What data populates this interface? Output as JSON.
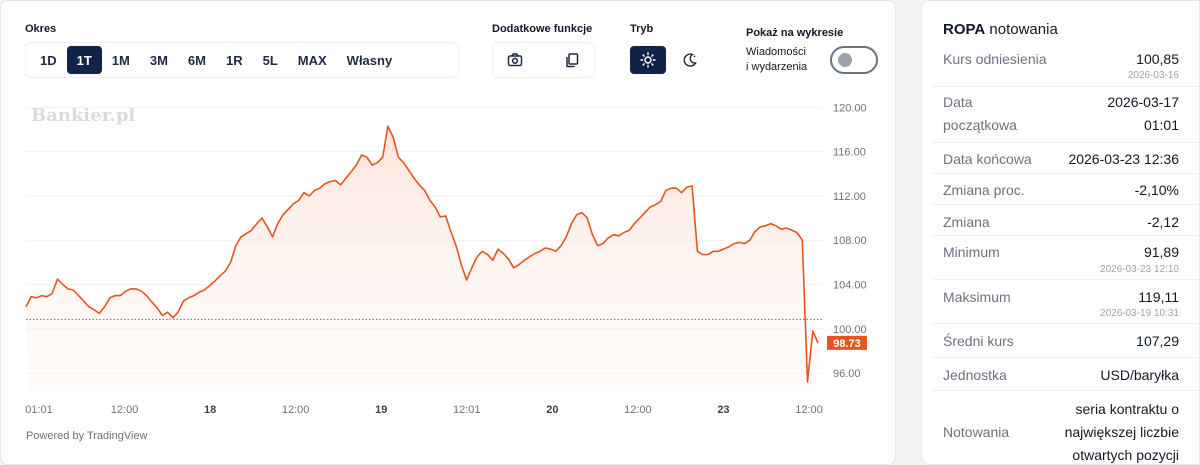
{
  "controls": {
    "period_label": "Okres",
    "periods": [
      "1D",
      "1T",
      "1M",
      "3M",
      "6M",
      "1R",
      "5L",
      "MAX",
      "Własny"
    ],
    "active_period": "1T",
    "extra_label": "Dodatkowe funkcje",
    "mode_label": "Tryb",
    "show_label": "Pokaż na wykresie",
    "news_toggle_label_1": "Wiadomości",
    "news_toggle_label_2": "i wydarzenia",
    "news_toggle_on": false,
    "icons": [
      "camera-icon",
      "copy-icon",
      "sun-icon",
      "moon-icon"
    ]
  },
  "watermark": "Bankier.pl",
  "powered_by": "Powered by TradingView",
  "colors": {
    "line": "#e8541f",
    "fill": "#fde4da",
    "accent": "#e8541f",
    "active_bg": "#0f2446"
  },
  "chart_data": {
    "type": "area",
    "x_ticks": [
      "01:01",
      "12:00",
      "18",
      "12:00",
      "19",
      "12:01",
      "20",
      "12:00",
      "23",
      "12:00"
    ],
    "y_ticks": [
      "120.00",
      "116.00",
      "112.00",
      "108.00",
      "104.00",
      "100.00",
      "96.00"
    ],
    "ylim": [
      94.2,
      121.3
    ],
    "reference_value": 100.85,
    "last_value": 98.73,
    "last_label": "98.73",
    "series": [
      {
        "values": [
          102.0,
          102.9,
          102.8,
          103.0,
          102.9,
          103.2,
          104.5,
          104.0,
          103.6,
          103.5,
          103.0,
          102.5,
          102.0,
          101.7,
          101.4,
          102.0,
          102.8,
          103.0,
          103.0,
          103.4,
          103.6,
          103.6,
          103.4,
          103.0,
          102.4,
          101.9,
          101.2,
          101.5,
          101.0,
          101.5,
          102.5,
          102.8,
          103.0,
          103.3,
          103.5,
          103.9,
          104.3,
          104.8,
          105.2,
          106.0,
          107.5,
          108.3,
          108.6,
          108.9,
          109.5,
          110.0,
          109.2,
          108.3,
          109.5,
          110.3,
          110.8,
          111.3,
          111.6,
          112.3,
          112.0,
          112.5,
          112.7,
          113.1,
          113.3,
          113.4,
          113.0,
          113.6,
          114.2,
          114.8,
          115.7,
          115.5,
          114.8,
          115.0,
          115.5,
          118.3,
          117.3,
          115.5,
          115.0,
          114.3,
          113.6,
          113.0,
          112.5,
          111.6,
          111.0,
          110.1,
          110.2,
          108.8,
          107.5,
          105.8,
          104.4,
          105.5,
          106.5,
          107.0,
          106.7,
          106.2,
          107.2,
          106.8,
          106.3,
          105.5,
          105.8,
          106.2,
          106.5,
          106.8,
          107.0,
          107.3,
          107.2,
          107.0,
          107.5,
          108.3,
          109.5,
          110.3,
          110.5,
          110.0,
          108.5,
          107.5,
          107.7,
          108.2,
          108.5,
          108.4,
          108.7,
          108.9,
          109.5,
          110.0,
          110.5,
          111.0,
          111.2,
          111.5,
          112.5,
          112.7,
          112.7,
          112.3,
          112.8,
          112.9,
          107.0,
          106.7,
          106.7,
          107.0,
          107.0,
          107.2,
          107.4,
          107.7,
          107.8,
          107.7,
          108.0,
          108.8,
          109.2,
          109.3,
          109.5,
          109.3,
          109.0,
          109.1,
          108.9,
          108.7,
          108.0,
          95.2,
          99.8,
          98.73
        ]
      }
    ],
    "grid": true,
    "legend": "none"
  },
  "info": {
    "symbol": "ROPA",
    "title_suffix": "notowania",
    "rows": [
      {
        "label": "Kurs odniesienia",
        "value": "100,85",
        "sub": "2026-03-16"
      },
      {
        "label": "Data|początkowa",
        "value": "2026-03-17|01:01",
        "sub": ""
      },
      {
        "label": "Data końcowa",
        "value": "2026-03-23 12:36",
        "sub": ""
      },
      {
        "label": "Zmiana proc.",
        "value": "-2,10%",
        "sub": ""
      },
      {
        "label": "Zmiana",
        "value": "-2,12",
        "sub": ""
      },
      {
        "label": "Minimum",
        "value": "91,89",
        "sub": "2026-03-23 12:10"
      },
      {
        "label": "Maksimum",
        "value": "119,11",
        "sub": "2026-03-19 10:31"
      },
      {
        "label": "Średni kurs",
        "value": "107,29",
        "sub": ""
      },
      {
        "label": "Jednostka",
        "value": "USD/baryłka",
        "sub": ""
      },
      {
        "label": "Notowania",
        "value": "seria kontraktu o|największej liczbie|otwartych pozycji",
        "sub": ""
      }
    ]
  }
}
